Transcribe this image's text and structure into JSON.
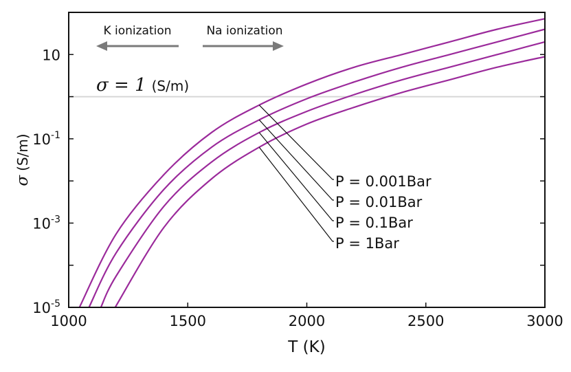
{
  "chart_data": {
    "type": "line",
    "title": "",
    "xlabel": "T (K)",
    "ylabel_symbol": "σ",
    "ylabel_unit": "(S/m)",
    "xlim": [
      1000,
      3000
    ],
    "ylim_log10": [
      -5,
      2
    ],
    "yscale": "log",
    "x_ticks": [
      "1000",
      "1500",
      "2000",
      "2500",
      "3000"
    ],
    "y_ticks": [
      {
        "base": "10",
        "exp": "-5"
      },
      {
        "base": "10",
        "exp": "-3"
      },
      {
        "base": "10",
        "exp": "-1"
      },
      {
        "base": "10",
        "exp": ""
      }
    ],
    "series_color": "#9b2a9b",
    "series": [
      {
        "name": "P = 0.001Bar",
        "x": [
          1045,
          1200,
          1400,
          1600,
          1800,
          2000,
          2200,
          2400,
          2600,
          2800,
          3000
        ],
        "log10_sigma": [
          -5.0,
          -3.25,
          -1.85,
          -0.85,
          -0.2,
          0.3,
          0.7,
          1.0,
          1.3,
          1.6,
          1.85
        ]
      },
      {
        "name": "P = 0.01Bar",
        "x": [
          1085,
          1200,
          1400,
          1600,
          1800,
          2000,
          2200,
          2400,
          2600,
          2800,
          3000
        ],
        "log10_sigma": [
          -5.0,
          -3.7,
          -2.2,
          -1.2,
          -0.55,
          -0.05,
          0.35,
          0.7,
          1.0,
          1.3,
          1.6
        ]
      },
      {
        "name": "P = 0.1Bar",
        "x": [
          1135,
          1200,
          1400,
          1600,
          1800,
          2000,
          2200,
          2400,
          2600,
          2800,
          3000
        ],
        "log10_sigma": [
          -5.0,
          -4.25,
          -2.6,
          -1.55,
          -0.85,
          -0.35,
          0.05,
          0.4,
          0.7,
          1.0,
          1.3
        ]
      },
      {
        "name": "P = 1Bar",
        "x": [
          1195,
          1400,
          1600,
          1800,
          2000,
          2200,
          2400,
          2600,
          2800,
          3000
        ],
        "log10_sigma": [
          -5.0,
          -3.1,
          -1.95,
          -1.2,
          -0.65,
          -0.25,
          0.1,
          0.4,
          0.7,
          0.95
        ]
      }
    ],
    "legend_labels": [
      "P = 0.001Bar",
      "P = 0.01Bar",
      "P = 0.1Bar",
      "P = 1Bar"
    ],
    "label_leader_x": 1800,
    "reference_line": {
      "log10_sigma": 0,
      "text_symbol": "σ = 1",
      "text_unit": "(S/m)"
    },
    "annotations": [
      {
        "text": "K ionization",
        "direction": "left"
      },
      {
        "text": "Na ionization",
        "direction": "right"
      }
    ],
    "grid": false
  }
}
